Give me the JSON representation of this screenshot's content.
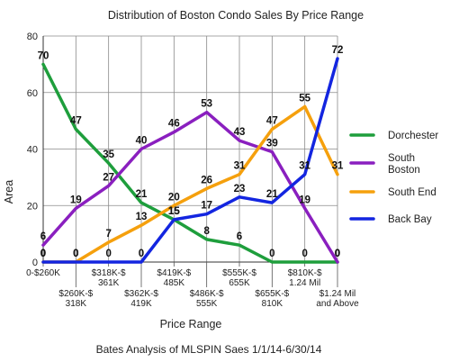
{
  "chart_data": {
    "type": "line",
    "title": "Distribution of Boston Condo Sales By Price Range",
    "xlabel": "Price Range",
    "ylabel": "Area",
    "footnote": "Bates Analysis of MLSPIN Saes 1/1/14-6/30/14",
    "ylim": [
      0,
      80
    ],
    "yticks": [
      0,
      20,
      40,
      60,
      80
    ],
    "grid": true,
    "legend_position": "right",
    "categories": [
      "0-$260K",
      "$260K-$ 318K",
      "$318K-$ 361K",
      "$362K-$ 419K",
      "$419K-$ 485K",
      "$486K-$ 555K",
      "$555K-$ 655K",
      "$655K-$ 810K",
      "$810K-$ 1.24 Mil",
      "$1.24 Mil and Above"
    ],
    "category_lines": [
      [
        "0-$260K"
      ],
      [
        "$260K-$",
        "318K"
      ],
      [
        "$318K-$",
        "361K"
      ],
      [
        "$362K-$",
        "419K"
      ],
      [
        "$419K-$",
        "485K"
      ],
      [
        "$486K-$",
        "555K"
      ],
      [
        "$555K-$",
        "655K"
      ],
      [
        "$655K-$",
        "810K"
      ],
      [
        "$810K-$",
        "1.24 Mil"
      ],
      [
        "$1.24 Mil",
        "and Above"
      ]
    ],
    "series": [
      {
        "name": "Dorchester",
        "color": "#1e9e3c",
        "values": [
          70,
          47,
          35,
          21,
          15,
          8,
          6,
          0,
          0,
          0
        ]
      },
      {
        "name": "South Boston",
        "color": "#8a1fbf",
        "values": [
          6,
          19,
          27,
          40,
          46,
          53,
          43,
          39,
          19,
          0
        ]
      },
      {
        "name": "South End",
        "color": "#f5a00d",
        "values": [
          0,
          0,
          7,
          13,
          20,
          26,
          31,
          47,
          55,
          31
        ]
      },
      {
        "name": "Back Bay",
        "color": "#1325e0",
        "values": [
          0,
          0,
          0,
          0,
          15,
          17,
          23,
          21,
          31,
          72
        ]
      }
    ]
  }
}
